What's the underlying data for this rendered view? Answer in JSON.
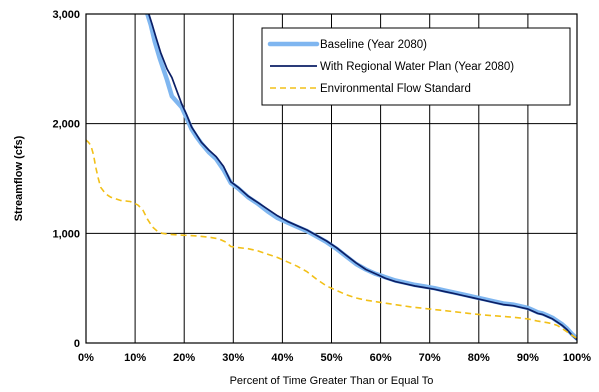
{
  "chart_data": {
    "type": "line",
    "title": "",
    "xlabel": "Percent of Time Greater Than or Equal To",
    "ylabel": "Streamflow (cfs)",
    "xlim": [
      0,
      100
    ],
    "ylim": [
      0,
      3000
    ],
    "x_ticks": [
      0,
      10,
      20,
      30,
      40,
      50,
      60,
      70,
      80,
      90,
      100
    ],
    "x_tick_labels": [
      "0%",
      "10%",
      "20%",
      "30%",
      "40%",
      "50%",
      "60%",
      "70%",
      "80%",
      "90%",
      "100%"
    ],
    "y_ticks": [
      0,
      1000,
      2000,
      3000
    ],
    "y_tick_labels": [
      "0",
      "1,000",
      "2,000",
      "3,000"
    ],
    "grid": true,
    "legend_position": "top-right",
    "series": [
      {
        "name": "Baseline (Year 2080)",
        "color": "#7fb6f0",
        "style": "solid-thick",
        "x": [
          12.5,
          13.2,
          14,
          15,
          16.5,
          17.5,
          18.5,
          19.5,
          20.5,
          21.5,
          22.5,
          23.5,
          25,
          26.5,
          28,
          29.5,
          31,
          33,
          35,
          37,
          39,
          41,
          43,
          45,
          47,
          49,
          51,
          53,
          55,
          57,
          59,
          61,
          63,
          65,
          67,
          69,
          71,
          73,
          75,
          77,
          79,
          81,
          83,
          85,
          87,
          89,
          90,
          91,
          92,
          93,
          94,
          95,
          96,
          97,
          98,
          99,
          100
        ],
        "y": [
          3000,
          2900,
          2750,
          2600,
          2400,
          2250,
          2200,
          2150,
          2050,
          1950,
          1880,
          1820,
          1740,
          1680,
          1580,
          1460,
          1410,
          1330,
          1270,
          1200,
          1140,
          1100,
          1060,
          1020,
          970,
          920,
          860,
          790,
          720,
          670,
          630,
          600,
          570,
          550,
          530,
          515,
          500,
          480,
          460,
          440,
          420,
          400,
          380,
          360,
          350,
          330,
          320,
          300,
          280,
          270,
          250,
          230,
          200,
          170,
          130,
          80,
          40
        ]
      },
      {
        "name": "With Regional Water Plan (Year 2080)",
        "color": "#0b1f66",
        "style": "solid",
        "x": [
          12.8,
          13.5,
          14.3,
          15.2,
          16.5,
          17.5,
          18.5,
          19.5,
          20.5,
          21.5,
          22.5,
          23.5,
          25,
          26.5,
          28,
          29.5,
          31,
          33,
          35,
          37,
          39,
          41,
          43,
          45,
          47,
          49,
          51,
          53,
          55,
          57,
          59,
          61,
          63,
          65,
          67,
          69,
          71,
          73,
          75,
          77,
          79,
          81,
          83,
          85,
          87,
          89,
          90,
          91,
          92,
          93,
          94,
          95,
          96,
          97,
          98,
          99,
          100
        ],
        "y": [
          3000,
          2900,
          2780,
          2650,
          2500,
          2420,
          2300,
          2180,
          2080,
          1970,
          1900,
          1830,
          1760,
          1700,
          1610,
          1470,
          1420,
          1340,
          1280,
          1220,
          1160,
          1110,
          1070,
          1030,
          980,
          930,
          870,
          800,
          730,
          670,
          630,
          590,
          560,
          540,
          520,
          505,
          490,
          470,
          450,
          430,
          410,
          390,
          370,
          350,
          340,
          320,
          310,
          290,
          270,
          260,
          240,
          220,
          190,
          160,
          120,
          70,
          30
        ]
      },
      {
        "name": "Environmental Flow Standard",
        "color": "#f2c018",
        "style": "dashed",
        "x": [
          0,
          0.5,
          1,
          1.5,
          2,
          2.5,
          3,
          4,
          5,
          7,
          9,
          10.5,
          11.5,
          12.5,
          13.5,
          14.5,
          15.5,
          17,
          19,
          21,
          23,
          25,
          27,
          28.5,
          29.5,
          31,
          33,
          35,
          37,
          39,
          41,
          43,
          45,
          47,
          49,
          51,
          53,
          55,
          57,
          60,
          63,
          66,
          69,
          72,
          75,
          78,
          81,
          84,
          87,
          90,
          92,
          94,
          95,
          96,
          97,
          98,
          99,
          100
        ],
        "y": [
          1850,
          1830,
          1800,
          1720,
          1600,
          1500,
          1420,
          1360,
          1330,
          1300,
          1290,
          1260,
          1220,
          1130,
          1060,
          1020,
          1000,
          990,
          985,
          980,
          975,
          965,
          950,
          920,
          880,
          870,
          860,
          840,
          810,
          780,
          740,
          700,
          650,
          580,
          520,
          480,
          440,
          410,
          390,
          370,
          350,
          330,
          315,
          300,
          285,
          270,
          255,
          245,
          235,
          220,
          200,
          185,
          175,
          160,
          130,
          100,
          70,
          40
        ]
      }
    ]
  }
}
